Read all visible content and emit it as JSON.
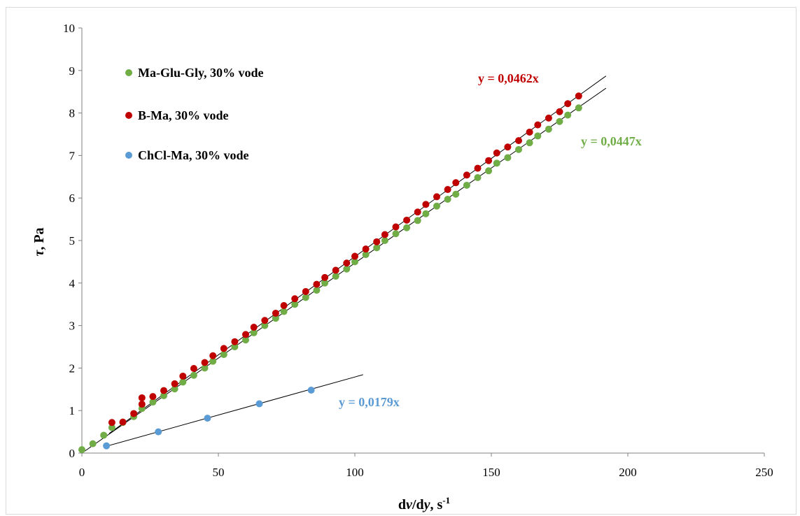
{
  "chart_data": {
    "type": "scatter",
    "xlabel_parts": [
      "d",
      "v",
      "/d",
      "y",
      ", s",
      "-1"
    ],
    "ylabel_parts": [
      "τ",
      ", Pa"
    ],
    "xlim": [
      0,
      250
    ],
    "ylim": [
      0,
      10
    ],
    "x_ticks": [
      "0",
      "50",
      "100",
      "150",
      "200",
      "250"
    ],
    "y_ticks": [
      "0",
      "1",
      "2",
      "3",
      "4",
      "5",
      "6",
      "7",
      "8",
      "9",
      "10"
    ],
    "grid": false,
    "legend_position": "top-left",
    "series": [
      {
        "name": "Ma-Glu-Gly, 30% vode",
        "color": "#70ad47",
        "trendline": "y = 0,0447x",
        "slope": 0.0447,
        "x": [
          0,
          4,
          8,
          11,
          15,
          19,
          22,
          26,
          30,
          34,
          37,
          41,
          45,
          48,
          52,
          56,
          60,
          63,
          67,
          71,
          74,
          78,
          82,
          86,
          89,
          93,
          97,
          100,
          104,
          108,
          111,
          115,
          119,
          123,
          126,
          130,
          134,
          137,
          141,
          145,
          149,
          152,
          156,
          160,
          164,
          167,
          171,
          175,
          178,
          182
        ],
        "y": [
          0.08,
          0.22,
          0.42,
          0.6,
          0.72,
          0.86,
          1.05,
          1.2,
          1.35,
          1.51,
          1.67,
          1.83,
          2.0,
          2.16,
          2.32,
          2.5,
          2.66,
          2.83,
          3.0,
          3.17,
          3.33,
          3.5,
          3.66,
          3.83,
          4.0,
          4.16,
          4.33,
          4.5,
          4.67,
          4.83,
          5.0,
          5.16,
          5.3,
          5.47,
          5.63,
          5.81,
          5.97,
          6.09,
          6.3,
          6.48,
          6.64,
          6.82,
          6.95,
          7.14,
          7.3,
          7.46,
          7.62,
          7.8,
          7.95,
          8.12
        ]
      },
      {
        "name": "B-Ma, 30% vode",
        "color": "#c00000",
        "trendline": "y = 0,0462x",
        "slope": 0.0462,
        "x": [
          11,
          15,
          19,
          22,
          22,
          26,
          30,
          34,
          37,
          41,
          45,
          48,
          52,
          56,
          60,
          63,
          67,
          71,
          74,
          78,
          82,
          86,
          89,
          93,
          97,
          100,
          104,
          108,
          111,
          115,
          119,
          123,
          126,
          130,
          134,
          137,
          141,
          145,
          149,
          152,
          156,
          160,
          164,
          167,
          171,
          175,
          178,
          182
        ],
        "y": [
          0.72,
          0.73,
          0.93,
          1.15,
          1.3,
          1.33,
          1.47,
          1.63,
          1.81,
          1.99,
          2.13,
          2.29,
          2.46,
          2.62,
          2.79,
          2.96,
          3.12,
          3.29,
          3.47,
          3.63,
          3.8,
          3.97,
          4.13,
          4.3,
          4.47,
          4.63,
          4.8,
          4.97,
          5.14,
          5.32,
          5.48,
          5.67,
          5.85,
          6.03,
          6.2,
          6.36,
          6.54,
          6.7,
          6.88,
          7.06,
          7.2,
          7.35,
          7.55,
          7.72,
          7.88,
          8.03,
          8.22,
          8.4
        ]
      },
      {
        "name": "ChCl-Ma, 30% vode",
        "color": "#5b9bd5",
        "trendline": "y = 0,0179x",
        "slope": 0.0179,
        "x": [
          9,
          28,
          46,
          65,
          84
        ],
        "y": [
          0.17,
          0.5,
          0.82,
          1.16,
          1.48
        ]
      }
    ]
  }
}
